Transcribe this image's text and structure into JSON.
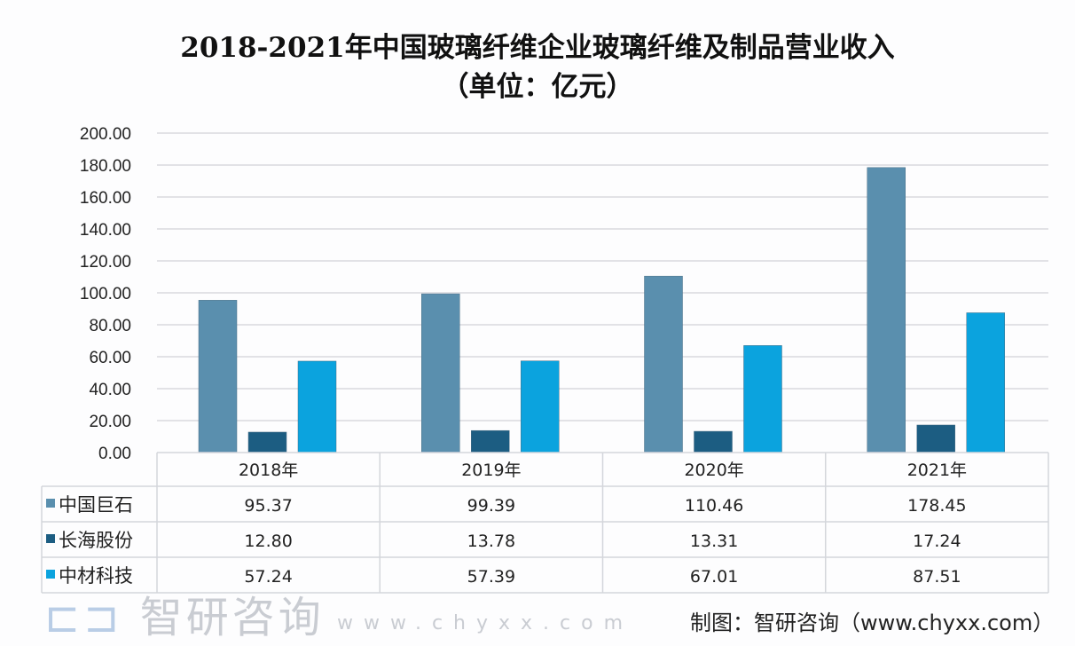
{
  "title_line1": "2018-2021年中国玻璃纤维企业玻璃纤维及制品营业收入",
  "title_line2": "（单位：亿元）",
  "chart_data": {
    "type": "bar",
    "title": "2018-2021年中国玻璃纤维企业玻璃纤维及制品营业收入（单位：亿元）",
    "categories": [
      "2018年",
      "2019年",
      "2020年",
      "2021年"
    ],
    "series": [
      {
        "name": "中国巨石",
        "values": [
          95.37,
          99.39,
          110.46,
          178.45
        ],
        "color": "#5a8fae",
        "labels": [
          "95.37",
          "99.39",
          "110.46",
          "178.45"
        ]
      },
      {
        "name": "长海股份",
        "values": [
          12.8,
          13.78,
          13.31,
          17.24
        ],
        "color": "#1c5d82",
        "labels": [
          "12.80",
          "13.78",
          "13.31",
          "17.24"
        ]
      },
      {
        "name": "中材科技",
        "values": [
          57.24,
          57.39,
          67.01,
          87.51
        ],
        "color": "#0ba3de",
        "labels": [
          "57.24",
          "57.39",
          "67.01",
          "87.51"
        ]
      }
    ],
    "ylim": [
      0,
      200
    ],
    "yticks": [
      "0.00",
      "20.00",
      "40.00",
      "60.00",
      "80.00",
      "100.00",
      "120.00",
      "140.00",
      "160.00",
      "180.00",
      "200.00"
    ],
    "grid": true,
    "legend": "data-table"
  },
  "watermark": {
    "brand": "智研咨询",
    "url": "www.chyxx.com"
  },
  "credit": "制图：智研咨询（www.chyxx.com）"
}
